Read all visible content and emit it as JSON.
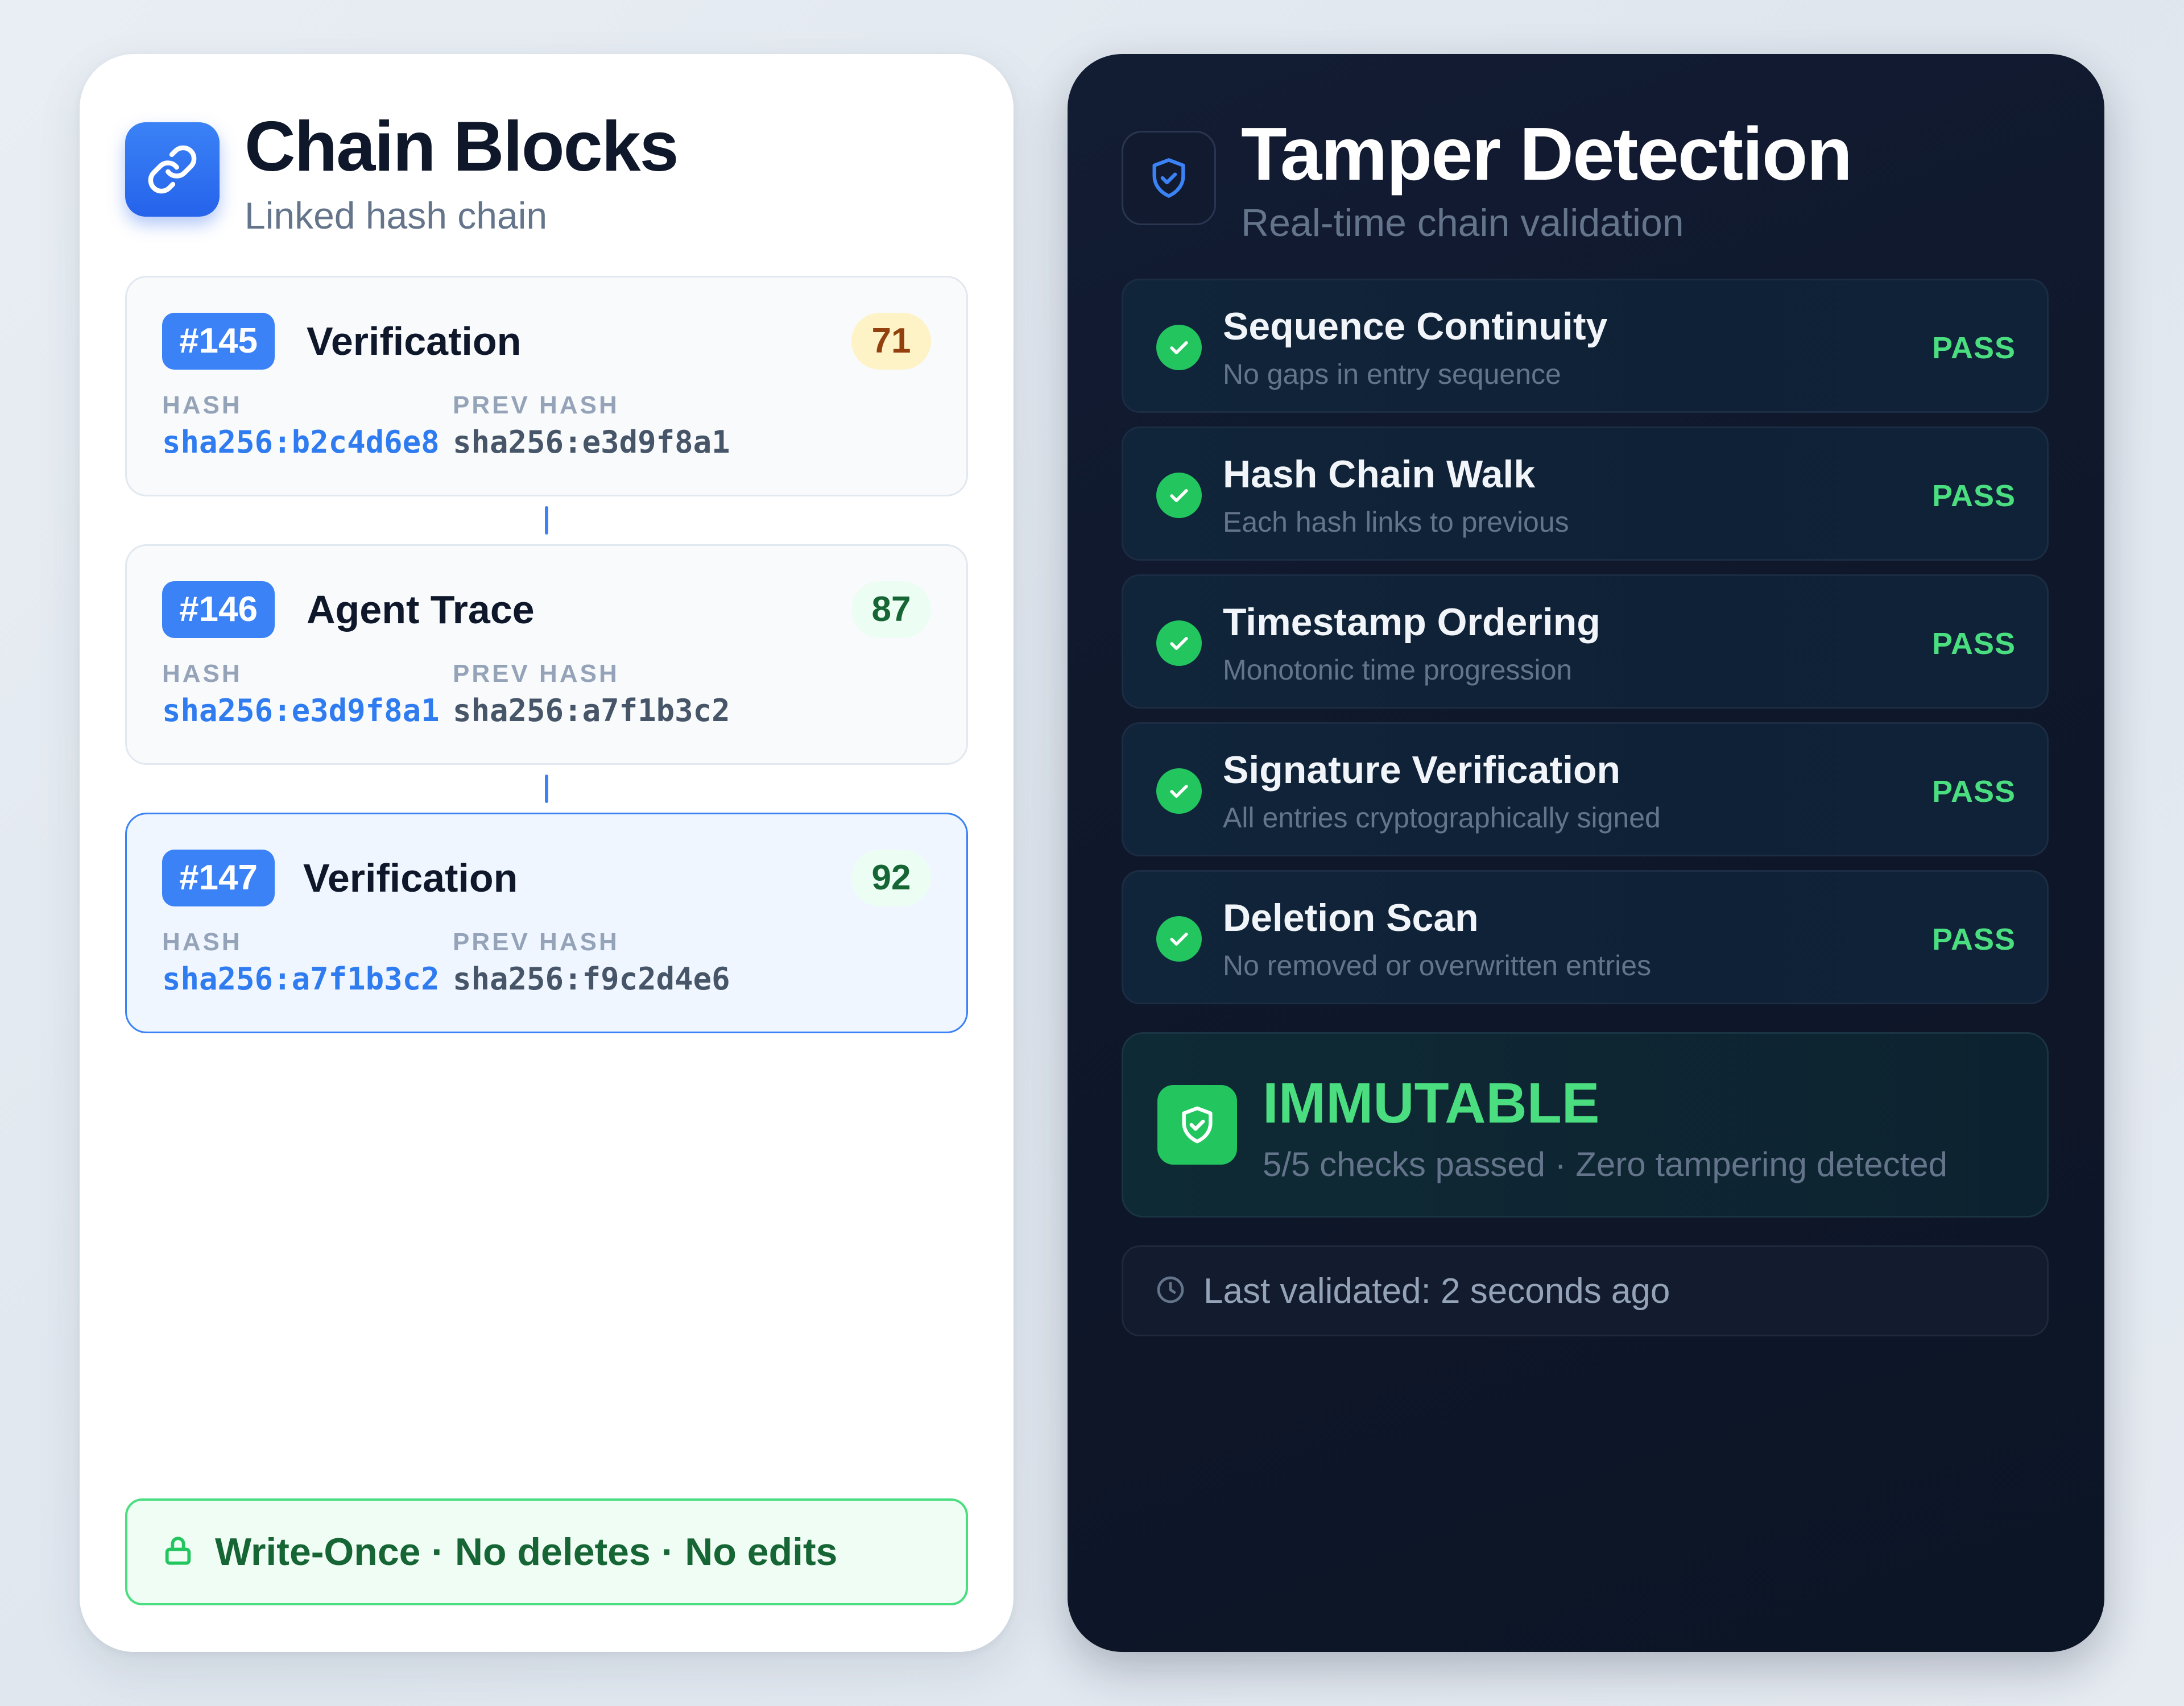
{
  "chain_blocks": {
    "title": "Chain Blocks",
    "subtitle": "Linked hash chain",
    "hash_label": "HASH",
    "prev_hash_label": "PREV HASH",
    "blocks": [
      {
        "id": "#145",
        "name": "Verification",
        "score": "71",
        "score_level": "warn",
        "hash": "sha256:b2c4d6e8",
        "prev_hash": "sha256:e3d9f8a1",
        "active": false
      },
      {
        "id": "#146",
        "name": "Agent Trace",
        "score": "87",
        "score_level": "good",
        "hash": "sha256:e3d9f8a1",
        "prev_hash": "sha256:a7f1b3c2",
        "active": false
      },
      {
        "id": "#147",
        "name": "Verification",
        "score": "92",
        "score_level": "good",
        "hash": "sha256:a7f1b3c2",
        "prev_hash": "sha256:f9c2d4e6",
        "active": true
      }
    ],
    "footer": "Write-Once · No deletes · No edits"
  },
  "tamper_detection": {
    "title": "Tamper Detection",
    "subtitle": "Real-time chain validation",
    "checks": [
      {
        "title": "Sequence Continuity",
        "desc": "No gaps in entry sequence",
        "status": "PASS"
      },
      {
        "title": "Hash Chain Walk",
        "desc": "Each hash links to previous",
        "status": "PASS"
      },
      {
        "title": "Timestamp Ordering",
        "desc": "Monotonic time progression",
        "status": "PASS"
      },
      {
        "title": "Signature Verification",
        "desc": "All entries cryptographically signed",
        "status": "PASS"
      },
      {
        "title": "Deletion Scan",
        "desc": "No removed or overwritten entries",
        "status": "PASS"
      }
    ],
    "result": {
      "title": "IMMUTABLE",
      "subtitle": "5/5 checks passed · Zero tampering detected"
    },
    "last_validated": "Last validated: 2 seconds ago"
  },
  "colors": {
    "accent_blue": "#3b82f6",
    "pass_green": "#4ade80",
    "warn_bg": "#fef3c7",
    "dark_bg": "#0f172a"
  },
  "icons": {
    "chain_header": "link-icon",
    "tamper_header": "shield-check-icon",
    "check": "check-circle-icon",
    "immutable": "shield-check-icon",
    "lock": "lock-icon",
    "clock": "clock-icon"
  }
}
